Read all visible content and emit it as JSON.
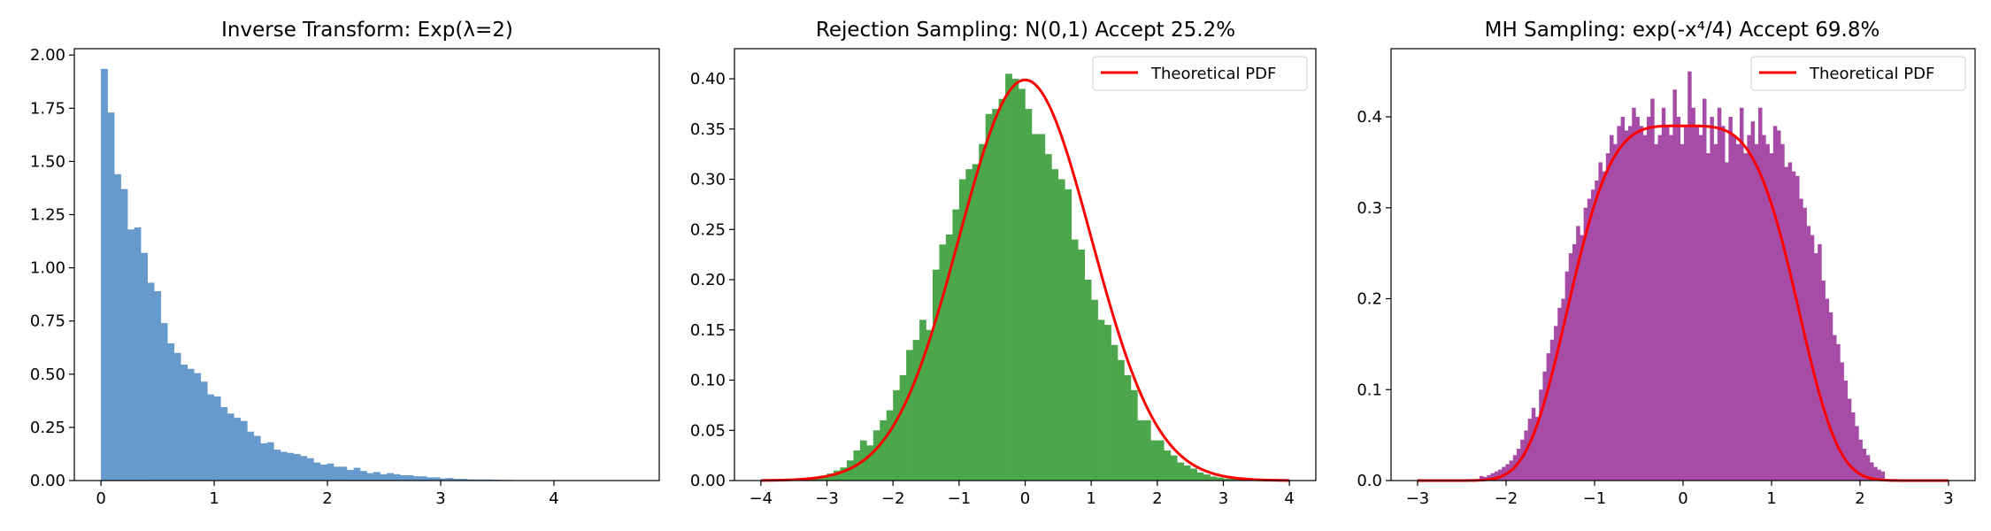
{
  "chart_data": [
    {
      "type": "bar",
      "title": "Inverse Transform: Exp(λ=2)",
      "xlim": [
        -0.235,
        4.93
      ],
      "ylim": [
        0,
        2.03
      ],
      "xticks": [
        0,
        1,
        2,
        3,
        4
      ],
      "yticks": [
        0.0,
        0.25,
        0.5,
        0.75,
        1.0,
        1.25,
        1.5,
        1.75,
        2.0
      ],
      "ytick_labels": [
        "0.00",
        "0.25",
        "0.50",
        "0.75",
        "1.00",
        "1.25",
        "1.50",
        "1.75",
        "2.00"
      ],
      "bar_color": "#6699cc",
      "bins": {
        "start": 0.0,
        "width": 0.0587
      },
      "values": [
        1.935,
        1.73,
        1.44,
        1.37,
        1.18,
        1.19,
        1.07,
        0.93,
        0.89,
        0.74,
        0.645,
        0.6,
        0.545,
        0.525,
        0.505,
        0.465,
        0.405,
        0.395,
        0.345,
        0.315,
        0.295,
        0.28,
        0.23,
        0.21,
        0.175,
        0.18,
        0.145,
        0.135,
        0.13,
        0.125,
        0.115,
        0.105,
        0.085,
        0.075,
        0.08,
        0.065,
        0.065,
        0.05,
        0.06,
        0.045,
        0.035,
        0.04,
        0.03,
        0.035,
        0.03,
        0.025,
        0.025,
        0.02,
        0.02,
        0.015,
        0.015,
        0.01,
        0.012,
        0.008,
        0.008,
        0.006,
        0.005,
        0.005,
        0.005,
        0.004,
        0.003,
        0.003,
        0.002,
        0.002,
        0.002,
        0.002,
        0.001,
        0.001,
        0.001,
        0.001,
        0.001,
        0.001,
        0.001,
        0.001,
        0.001,
        0.0,
        0.0,
        0.0,
        0.0,
        0.001
      ]
    },
    {
      "type": "bar",
      "title": "Rejection Sampling: N(0,1)  Accept 25.2%",
      "xlim": [
        -4.4,
        4.4
      ],
      "ylim": [
        0,
        0.43
      ],
      "xticks": [
        -4,
        -3,
        -2,
        -1,
        0,
        1,
        2,
        3,
        4
      ],
      "xtick_labels": [
        "−4",
        "−3",
        "−2",
        "−1",
        "0",
        "1",
        "2",
        "3",
        "4"
      ],
      "yticks": [
        0.0,
        0.05,
        0.1,
        0.15,
        0.2,
        0.25,
        0.3,
        0.35,
        0.4
      ],
      "ytick_labels": [
        "0.00",
        "0.05",
        "0.10",
        "0.15",
        "0.20",
        "0.25",
        "0.30",
        "0.35",
        "0.40"
      ],
      "bar_color": "#4ca64c",
      "bins": {
        "start": -3.3,
        "width": 0.1
      },
      "values": [
        0.003,
        0.004,
        0.005,
        0.007,
        0.01,
        0.013,
        0.02,
        0.03,
        0.04,
        0.035,
        0.05,
        0.06,
        0.07,
        0.09,
        0.105,
        0.13,
        0.14,
        0.16,
        0.15,
        0.21,
        0.235,
        0.245,
        0.27,
        0.3,
        0.31,
        0.315,
        0.335,
        0.365,
        0.37,
        0.38,
        0.405,
        0.4,
        0.39,
        0.37,
        0.345,
        0.345,
        0.325,
        0.31,
        0.3,
        0.29,
        0.24,
        0.23,
        0.2,
        0.18,
        0.16,
        0.155,
        0.135,
        0.12,
        0.105,
        0.09,
        0.06,
        0.06,
        0.04,
        0.04,
        0.03,
        0.025,
        0.018,
        0.015,
        0.012,
        0.008,
        0.006,
        0.004,
        0.003,
        0.002,
        0.002,
        0.001
      ],
      "curve": {
        "name": "Theoretical PDF",
        "color": "#ff0000",
        "function": "normal_pdf",
        "x_range": [
          -4,
          4
        ]
      },
      "legend": {
        "label": "Theoretical PDF",
        "loc": "upper right"
      }
    },
    {
      "type": "bar",
      "title": "MH Sampling: exp(-x⁴/4)  Accept 69.8%",
      "xlim": [
        -3.3,
        3.3
      ],
      "ylim": [
        0,
        0.475
      ],
      "xticks": [
        -3,
        -2,
        -1,
        0,
        1,
        2,
        3
      ],
      "xtick_labels": [
        "−3",
        "−2",
        "−1",
        "0",
        "1",
        "2",
        "3"
      ],
      "yticks": [
        0.0,
        0.1,
        0.2,
        0.3,
        0.4
      ],
      "ytick_labels": [
        "0.0",
        "0.1",
        "0.2",
        "0.3",
        "0.4"
      ],
      "bar_color": "#a64ca6",
      "bins": {
        "start": -2.3,
        "width": 0.042
      },
      "values": [
        0.005,
        0.004,
        0.006,
        0.008,
        0.01,
        0.012,
        0.015,
        0.018,
        0.022,
        0.028,
        0.035,
        0.045,
        0.055,
        0.068,
        0.08,
        0.07,
        0.1,
        0.12,
        0.14,
        0.155,
        0.17,
        0.19,
        0.2,
        0.23,
        0.25,
        0.26,
        0.28,
        0.27,
        0.3,
        0.31,
        0.32,
        0.33,
        0.35,
        0.34,
        0.36,
        0.38,
        0.37,
        0.39,
        0.4,
        0.385,
        0.39,
        0.41,
        0.4,
        0.39,
        0.38,
        0.4,
        0.42,
        0.37,
        0.38,
        0.41,
        0.39,
        0.38,
        0.43,
        0.4,
        0.37,
        0.39,
        0.45,
        0.41,
        0.39,
        0.38,
        0.42,
        0.36,
        0.4,
        0.37,
        0.41,
        0.39,
        0.35,
        0.4,
        0.38,
        0.37,
        0.41,
        0.36,
        0.38,
        0.395,
        0.37,
        0.41,
        0.38,
        0.37,
        0.36,
        0.39,
        0.385,
        0.37,
        0.345,
        0.35,
        0.34,
        0.335,
        0.31,
        0.3,
        0.28,
        0.27,
        0.25,
        0.26,
        0.22,
        0.2,
        0.185,
        0.16,
        0.15,
        0.13,
        0.11,
        0.09,
        0.075,
        0.06,
        0.045,
        0.035,
        0.028,
        0.02,
        0.015,
        0.012,
        0.01
      ],
      "curve": {
        "name": "Theoretical PDF",
        "color": "#ff0000",
        "function": "exp_neg_x4_over_4",
        "x_range": [
          -3,
          3
        ]
      },
      "legend": {
        "label": "Theoretical PDF",
        "loc": "upper right"
      }
    }
  ]
}
